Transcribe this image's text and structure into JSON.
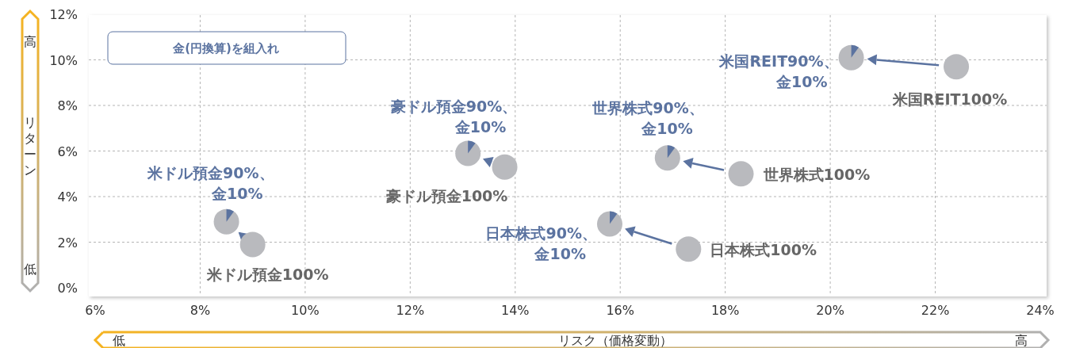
{
  "chart_data": {
    "type": "scatter",
    "xlabel": "リスク（価格変動）",
    "ylabel": "リターン",
    "xlim": [
      6,
      24
    ],
    "ylim": [
      0,
      12
    ],
    "xticks": [
      {
        "value": 6,
        "label": "6%"
      },
      {
        "value": 8,
        "label": "8%"
      },
      {
        "value": 10,
        "label": "10%"
      },
      {
        "value": 12,
        "label": "12%"
      },
      {
        "value": 14,
        "label": "14%"
      },
      {
        "value": 16,
        "label": "16%"
      },
      {
        "value": 18,
        "label": "18%"
      },
      {
        "value": 20,
        "label": "20%"
      },
      {
        "value": 22,
        "label": "22%"
      },
      {
        "value": 24,
        "label": "24%"
      }
    ],
    "yticks": [
      {
        "value": 0,
        "label": "0%"
      },
      {
        "value": 2,
        "label": "2%"
      },
      {
        "value": 4,
        "label": "4%"
      },
      {
        "value": 6,
        "label": "6%"
      },
      {
        "value": 8,
        "label": "8%"
      },
      {
        "value": 10,
        "label": "10%"
      },
      {
        "value": 12,
        "label": "12%"
      }
    ],
    "grid": true,
    "marker": "circle",
    "series": [
      {
        "color": "#b9babe",
        "x": [
          9.0,
          13.8,
          17.3,
          18.3,
          22.4
        ],
        "values": [
          1.9,
          5.3,
          1.7,
          5.0,
          9.7
        ]
      },
      {
        "color": "#b9babe",
        "x": [
          8.5,
          13.1,
          15.8,
          16.9,
          20.4
        ],
        "values": [
          2.9,
          5.9,
          2.8,
          5.7,
          10.1
        ]
      }
    ],
    "annotations": [
      {
        "text": "米ドル預金90%、金10%",
        "x": 8.5,
        "y": 2.9
      },
      {
        "text": "豪ドル預金90%、金10%",
        "x": 13.1,
        "y": 5.9
      },
      {
        "text": "日本株式90%、金10%",
        "x": 15.8,
        "y": 2.8
      },
      {
        "text": "世界株式90%、金10%",
        "x": 16.9,
        "y": 5.7
      },
      {
        "text": "米国REIT90%、金10%",
        "x": 20.4,
        "y": 10.1
      },
      {
        "text": "米ドル預金100%",
        "x": 9.0,
        "y": 1.9
      },
      {
        "text": "豪ドル預金100%",
        "x": 13.8,
        "y": 5.3
      },
      {
        "text": "日本株式100%",
        "x": 17.3,
        "y": 1.7
      },
      {
        "text": "世界株式100%",
        "x": 18.3,
        "y": 5.0
      },
      {
        "text": "米国REIT100%",
        "x": 22.4,
        "y": 9.7
      },
      "金(円換算)を組入れ",
      "高",
      "低",
      "低",
      "高"
    ]
  }
}
